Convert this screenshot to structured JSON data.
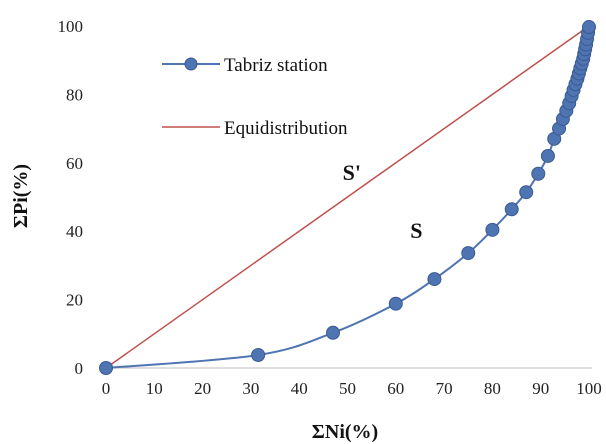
{
  "chart_data": {
    "type": "line",
    "xlabel": "ΣNi(%)",
    "ylabel": "ΣPi(%)",
    "xlim": [
      0,
      100
    ],
    "ylim": [
      0,
      100
    ],
    "x_ticks": [
      "0",
      "10",
      "20",
      "30",
      "40",
      "50",
      "60",
      "70",
      "80",
      "90",
      "100"
    ],
    "y_ticks": [
      "0",
      "20",
      "40",
      "60",
      "80",
      "100"
    ],
    "grid": false,
    "legend_position": "top-left",
    "series": [
      {
        "name": "Tabriz station",
        "color": "#4f74b2",
        "marker": "circle",
        "x": [
          0,
          31.5,
          47,
          60,
          68,
          75,
          80,
          84,
          87,
          89.5,
          91.5,
          92.8,
          93.8,
          94.6,
          95.3,
          95.9,
          96.4,
          96.8,
          97.2,
          97.6,
          97.9,
          98.2,
          98.5,
          98.8,
          99.0,
          99.2,
          99.4,
          99.6,
          99.8,
          100
        ],
        "y": [
          0,
          3.8,
          10.3,
          18.8,
          26,
          33.6,
          40.4,
          46.4,
          51.4,
          56.8,
          62,
          67,
          70,
          72.8,
          75.2,
          77.4,
          79.5,
          81.3,
          83,
          84.6,
          86.1,
          87.6,
          89,
          90.4,
          91.8,
          93.2,
          94.6,
          96.2,
          98,
          99.7
        ]
      },
      {
        "name": "Equidistribution",
        "color": "#c0504d",
        "marker": "none",
        "x": [
          0,
          100
        ],
        "y": [
          0,
          100
        ]
      }
    ],
    "annotations": [
      {
        "text": "S'",
        "x": 49,
        "y": 55
      },
      {
        "text": "S",
        "x": 63,
        "y": 38
      }
    ]
  }
}
